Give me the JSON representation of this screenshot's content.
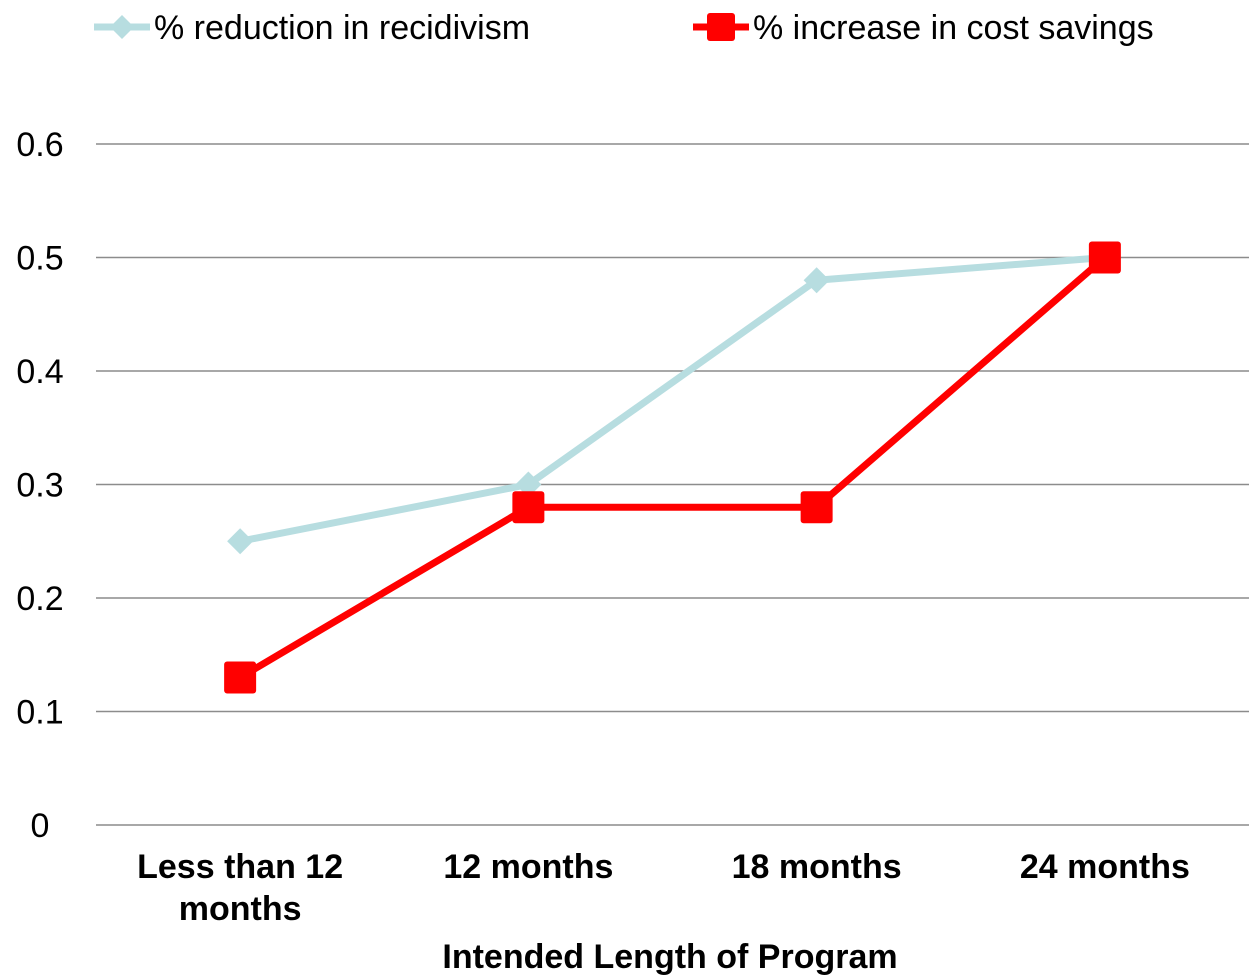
{
  "chart_data": {
    "type": "line",
    "categories": [
      [
        "Less than 12",
        "months"
      ],
      [
        "12 months"
      ],
      [
        "18 months"
      ],
      [
        "24 months"
      ]
    ],
    "series": [
      {
        "name": "% reduction in recidivism",
        "values": [
          0.25,
          0.3,
          0.48,
          0.5
        ],
        "color": "#b7dde0",
        "marker": "diamond"
      },
      {
        "name": "% increase in cost savings",
        "values": [
          0.13,
          0.28,
          0.28,
          0.5
        ],
        "color": "#ff0000",
        "marker": "square"
      }
    ],
    "yticks": [
      "0",
      "0.1",
      "0.2",
      "0.3",
      "0.4",
      "0.5",
      "0.6"
    ],
    "ylim": [
      0,
      0.6
    ],
    "xlabel": "Intended Length of Program",
    "ylabel": "",
    "title": "",
    "grid": true,
    "legend_position": "top"
  }
}
